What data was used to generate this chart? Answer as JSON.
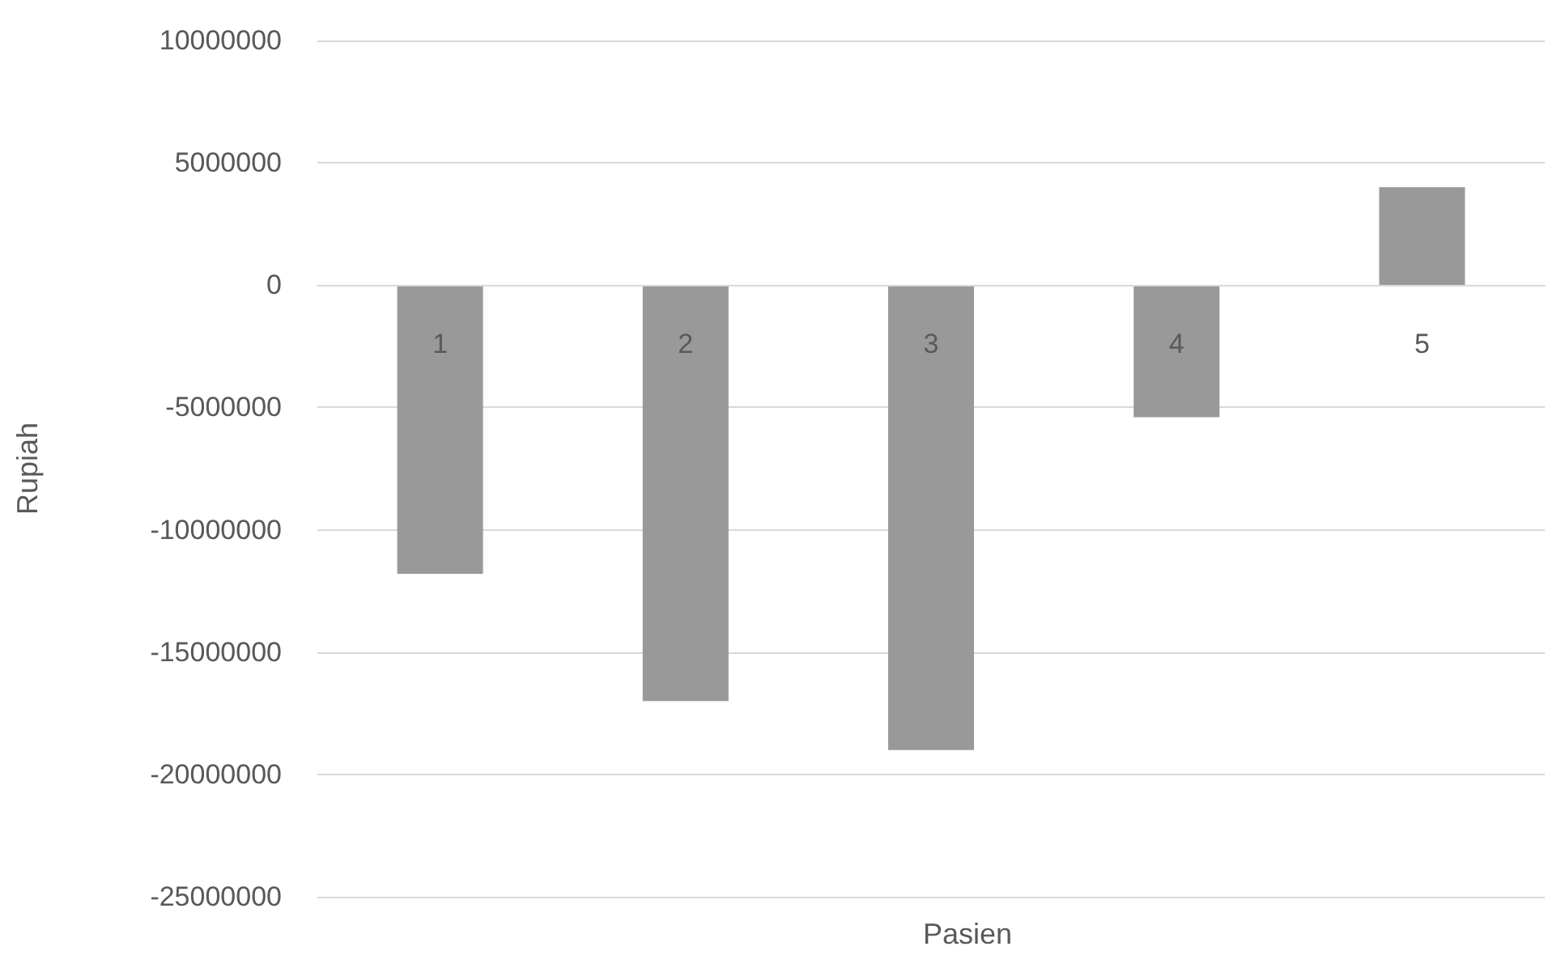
{
  "chart_data": {
    "type": "bar",
    "xlabel": "Pasien",
    "ylabel": "Rupiah",
    "categories": [
      "1",
      "2",
      "3",
      "4",
      "5"
    ],
    "values": [
      -11800000,
      -17000000,
      -19000000,
      -5400000,
      4000000
    ],
    "color": "#999999",
    "ylim": [
      -25000000,
      10000000
    ],
    "yticks": [
      -25000000,
      -20000000,
      -15000000,
      -10000000,
      -5000000,
      0,
      5000000,
      10000000
    ],
    "grid": "y"
  }
}
